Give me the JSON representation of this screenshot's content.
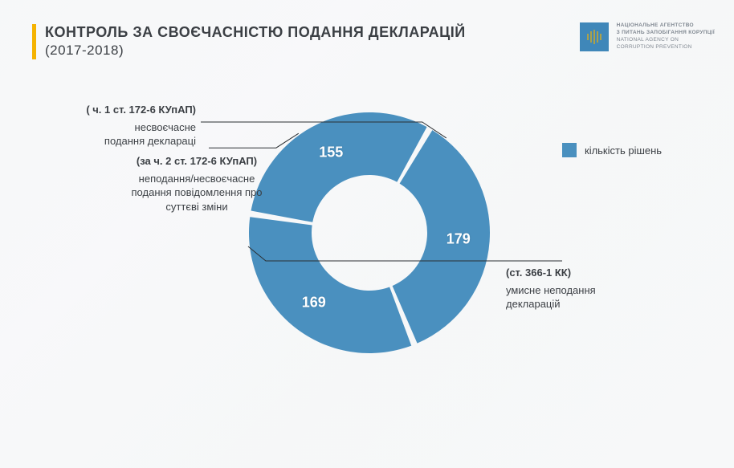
{
  "header": {
    "title": "КОНТРОЛЬ ЗА СВОЄЧАСНІСТЮ ПОДАННЯ ДЕКЛАРАЦІЙ",
    "subtitle": "(2017-2018)",
    "accent_color": "#f5b301"
  },
  "logo": {
    "line1": "НАЦІОНАЛЬНЕ АГЕНТСТВО",
    "line2": "З ПИТАНЬ ЗАПОБІГАННЯ КОРУПЦІЇ",
    "line3": "NATIONAL AGENCY ON",
    "line4": "CORRUPTION PREVENTION",
    "bg_color": "#3f87b9",
    "bar_color": "#f5b301"
  },
  "chart": {
    "type": "donut",
    "colors": {
      "slice": "#4a90bf",
      "gap": "#ffffff",
      "value_text": "#ffffff",
      "callout_text": "#3b3f44",
      "lead_line": "#2b2f33"
    },
    "inner_radius": 72,
    "outer_radius": 150,
    "gap_deg": 3,
    "slices": [
      {
        "id": "s1",
        "value": 179,
        "law": "( ч. 1 ст.  172-6 КУпАП)",
        "desc1": "несвоєчасне",
        "desc2": "подання деклараці",
        "callout_side": "left"
      },
      {
        "id": "s2",
        "value": 155,
        "law": "(за ч. 2 ст.  172-6 КУпАП)",
        "desc1": "неподання/несвоєчасне",
        "desc2": "подання повідомлення про",
        "desc3": "суттєві зміни",
        "callout_side": "left-bottom"
      },
      {
        "id": "s3",
        "value": 169,
        "law": "(ст. 366-1 КК)",
        "desc1": "умисне неподання",
        "desc2": "декларацій",
        "callout_side": "right"
      }
    ]
  },
  "legend": {
    "label": "кількість рішень",
    "swatch_color": "#4a90bf"
  }
}
